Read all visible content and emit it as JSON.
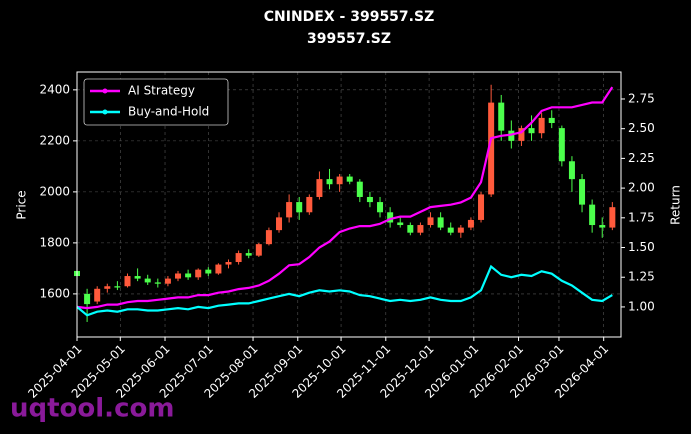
{
  "chart_data": {
    "type": "candlestick",
    "title": "CNINDEX - 399557.SZ",
    "subtitle": "399557.SZ",
    "y_label": "Price",
    "y2_label": "Return",
    "watermark": "uqtool.com",
    "legend": "upper left",
    "grid": true,
    "up_color": "#ff5a3c",
    "down_color": "#4cff4c",
    "xlim": [
      "2025-04-01",
      "2026-04-13"
    ],
    "xticks": [
      "2025-04-01",
      "2025-05-01",
      "2025-06-01",
      "2025-07-01",
      "2025-08-01",
      "2025-09-01",
      "2025-10-01",
      "2025-11-01",
      "2025-12-01",
      "2026-01-01",
      "2026-02-01",
      "2026-03-01",
      "2026-04-01"
    ],
    "ylim": [
      1431,
      2470
    ],
    "yticks": [
      1600,
      1800,
      2000,
      2200,
      2400
    ],
    "y2lim": [
      0.747,
      2.977
    ],
    "y2ticks": [
      {
        "value": 1,
        "label": "1.00"
      },
      {
        "value": 1.25,
        "label": "1.25"
      },
      {
        "value": 1.5,
        "label": "1.50"
      },
      {
        "value": 1.75,
        "label": "1.75"
      },
      {
        "value": 2,
        "label": "2.00"
      },
      {
        "value": 2.25,
        "label": "2.25"
      },
      {
        "value": 2.5,
        "label": "2.50"
      },
      {
        "value": 2.75,
        "label": "2.75"
      }
    ],
    "x": [
      "2025-04-01",
      "2025-04-08",
      "2025-04-15",
      "2025-04-22",
      "2025-04-29",
      "2025-05-06",
      "2025-05-13",
      "2025-05-20",
      "2025-05-27",
      "2025-06-03",
      "2025-06-10",
      "2025-06-17",
      "2025-06-24",
      "2025-07-01",
      "2025-07-08",
      "2025-07-15",
      "2025-07-22",
      "2025-07-29",
      "2025-08-05",
      "2025-08-12",
      "2025-08-19",
      "2025-08-26",
      "2025-09-02",
      "2025-09-09",
      "2025-09-16",
      "2025-09-23",
      "2025-09-30",
      "2025-10-07",
      "2025-10-14",
      "2025-10-21",
      "2025-10-28",
      "2025-11-04",
      "2025-11-11",
      "2025-11-18",
      "2025-11-25",
      "2025-12-02",
      "2025-12-09",
      "2025-12-16",
      "2025-12-23",
      "2025-12-30",
      "2026-01-06",
      "2026-01-13",
      "2026-01-20",
      "2026-01-27",
      "2026-02-03",
      "2026-02-10",
      "2026-02-17",
      "2026-02-24",
      "2026-03-03",
      "2026-03-10",
      "2026-03-17",
      "2026-03-24",
      "2026-03-31",
      "2026-04-07"
    ],
    "open": [
      1690,
      1600,
      1570,
      1620,
      1630,
      1630,
      1670,
      1660,
      1645,
      1640,
      1660,
      1680,
      1665,
      1695,
      1680,
      1715,
      1725,
      1760,
      1750,
      1795,
      1850,
      1900,
      1960,
      1920,
      1980,
      2050,
      2030,
      2060,
      2040,
      1980,
      1960,
      1920,
      1880,
      1870,
      1840,
      1870,
      1900,
      1860,
      1840,
      1860,
      1890,
      1990,
      2350,
      2240,
      2200,
      2250,
      2230,
      2290,
      2250,
      2120,
      2050,
      1950,
      1870,
      1860
    ],
    "high": [
      1700,
      1620,
      1630,
      1640,
      1650,
      1680,
      1700,
      1675,
      1660,
      1670,
      1690,
      1695,
      1700,
      1705,
      1720,
      1735,
      1770,
      1775,
      1800,
      1860,
      1920,
      1990,
      1980,
      1990,
      2080,
      2090,
      2070,
      2070,
      2050,
      2000,
      1980,
      1940,
      1900,
      1880,
      1880,
      1920,
      1920,
      1880,
      1870,
      1900,
      2000,
      2420,
      2380,
      2280,
      2260,
      2300,
      2310,
      2320,
      2260,
      2140,
      2070,
      1970,
      1900,
      1960
    ],
    "low": [
      1660,
      1490,
      1560,
      1605,
      1615,
      1625,
      1650,
      1635,
      1625,
      1630,
      1650,
      1655,
      1655,
      1670,
      1675,
      1700,
      1715,
      1740,
      1745,
      1790,
      1840,
      1880,
      1890,
      1910,
      1970,
      2010,
      2000,
      2030,
      1960,
      1940,
      1900,
      1860,
      1860,
      1830,
      1830,
      1860,
      1850,
      1830,
      1820,
      1850,
      1880,
      1980,
      2200,
      2170,
      2180,
      2200,
      2210,
      2250,
      2100,
      2000,
      1920,
      1840,
      1820,
      1850
    ],
    "close": [
      1670,
      1560,
      1620,
      1630,
      1625,
      1670,
      1660,
      1645,
      1640,
      1660,
      1680,
      1665,
      1695,
      1680,
      1715,
      1725,
      1760,
      1750,
      1795,
      1850,
      1900,
      1960,
      1920,
      1980,
      2050,
      2030,
      2060,
      2040,
      1980,
      1960,
      1920,
      1880,
      1870,
      1840,
      1870,
      1900,
      1860,
      1840,
      1860,
      1890,
      1990,
      2350,
      2240,
      2200,
      2250,
      2230,
      2290,
      2270,
      2120,
      2050,
      1950,
      1870,
      1860,
      1940
    ],
    "series": [
      {
        "name": "AI Strategy",
        "color": "#ff00ff",
        "axis": "y2",
        "values": [
          1.0,
          0.99,
          1.0,
          1.02,
          1.02,
          1.04,
          1.05,
          1.05,
          1.06,
          1.07,
          1.08,
          1.08,
          1.1,
          1.1,
          1.12,
          1.13,
          1.15,
          1.16,
          1.18,
          1.22,
          1.28,
          1.35,
          1.36,
          1.42,
          1.5,
          1.55,
          1.63,
          1.66,
          1.68,
          1.68,
          1.7,
          1.74,
          1.76,
          1.76,
          1.8,
          1.84,
          1.85,
          1.86,
          1.88,
          1.92,
          2.05,
          2.42,
          2.44,
          2.45,
          2.47,
          2.55,
          2.65,
          2.68,
          2.68,
          2.68,
          2.7,
          2.72,
          2.72,
          2.85
        ]
      },
      {
        "name": "Buy-and-Hold",
        "color": "#00ffff",
        "axis": "y2",
        "values": [
          1.0,
          0.93,
          0.96,
          0.97,
          0.96,
          0.98,
          0.98,
          0.97,
          0.97,
          0.98,
          0.99,
          0.98,
          1.0,
          0.99,
          1.01,
          1.02,
          1.03,
          1.03,
          1.05,
          1.07,
          1.09,
          1.11,
          1.09,
          1.12,
          1.14,
          1.13,
          1.14,
          1.13,
          1.1,
          1.09,
          1.07,
          1.05,
          1.06,
          1.05,
          1.06,
          1.08,
          1.06,
          1.05,
          1.05,
          1.08,
          1.14,
          1.34,
          1.27,
          1.25,
          1.27,
          1.26,
          1.3,
          1.28,
          1.22,
          1.18,
          1.12,
          1.06,
          1.05,
          1.1
        ]
      }
    ]
  }
}
